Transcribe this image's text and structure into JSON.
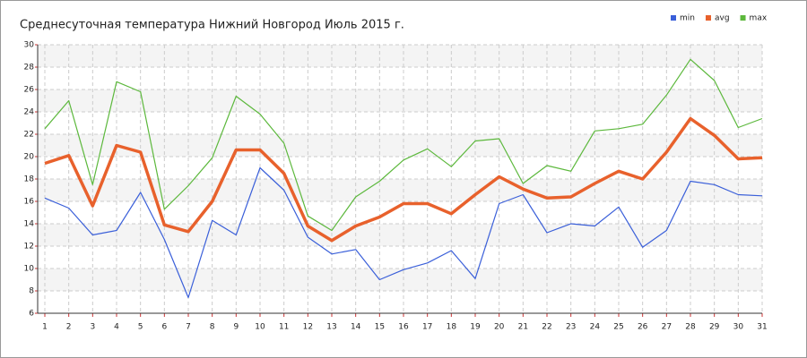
{
  "chart_data": {
    "type": "line",
    "title": "Среднесуточная температура Нижний Новгород  Июль 2015 г.",
    "x": [
      1,
      2,
      3,
      4,
      5,
      6,
      7,
      8,
      9,
      10,
      11,
      12,
      13,
      14,
      15,
      16,
      17,
      18,
      19,
      20,
      21,
      22,
      23,
      24,
      25,
      26,
      27,
      28,
      29,
      30,
      31
    ],
    "series": [
      {
        "name": "min",
        "color": "#3a5fd9",
        "values": [
          16.3,
          15.4,
          13.0,
          13.4,
          16.8,
          12.6,
          7.4,
          14.3,
          13.0,
          19.0,
          17.0,
          12.8,
          11.3,
          11.7,
          9.0,
          9.9,
          10.5,
          11.6,
          9.1,
          15.8,
          16.6,
          13.2,
          14.0,
          13.8,
          15.5,
          11.9,
          13.4,
          17.8,
          17.5,
          16.6,
          16.5
        ]
      },
      {
        "name": "avg",
        "color": "#e8612c",
        "values": [
          19.4,
          20.1,
          15.6,
          21.0,
          20.4,
          13.9,
          13.3,
          16.0,
          20.6,
          20.6,
          18.5,
          13.8,
          12.5,
          13.8,
          14.6,
          15.8,
          15.8,
          14.9,
          16.6,
          18.2,
          17.1,
          16.3,
          16.4,
          17.6,
          18.7,
          18.0,
          20.4,
          23.4,
          21.9,
          19.8,
          19.9
        ]
      },
      {
        "name": "max",
        "color": "#5cb83c",
        "values": [
          22.5,
          25.0,
          17.5,
          26.7,
          25.8,
          15.3,
          17.4,
          19.9,
          25.4,
          23.8,
          21.2,
          14.7,
          13.4,
          16.4,
          17.8,
          19.7,
          20.7,
          19.1,
          21.4,
          21.6,
          17.6,
          19.2,
          18.7,
          22.3,
          22.5,
          22.9,
          25.5,
          28.7,
          26.8,
          22.6,
          23.4
        ]
      }
    ],
    "xlim": [
      1,
      31
    ],
    "xticks": [
      1,
      2,
      3,
      4,
      5,
      6,
      7,
      8,
      9,
      10,
      11,
      12,
      13,
      14,
      15,
      16,
      17,
      18,
      19,
      20,
      21,
      22,
      23,
      24,
      25,
      26,
      27,
      28,
      29,
      30,
      31
    ],
    "ylim": [
      6,
      30
    ],
    "yticks": [
      6,
      8,
      10,
      12,
      14,
      16,
      18,
      20,
      22,
      24,
      26,
      28,
      30
    ],
    "grid": true,
    "legend": "top-right"
  }
}
